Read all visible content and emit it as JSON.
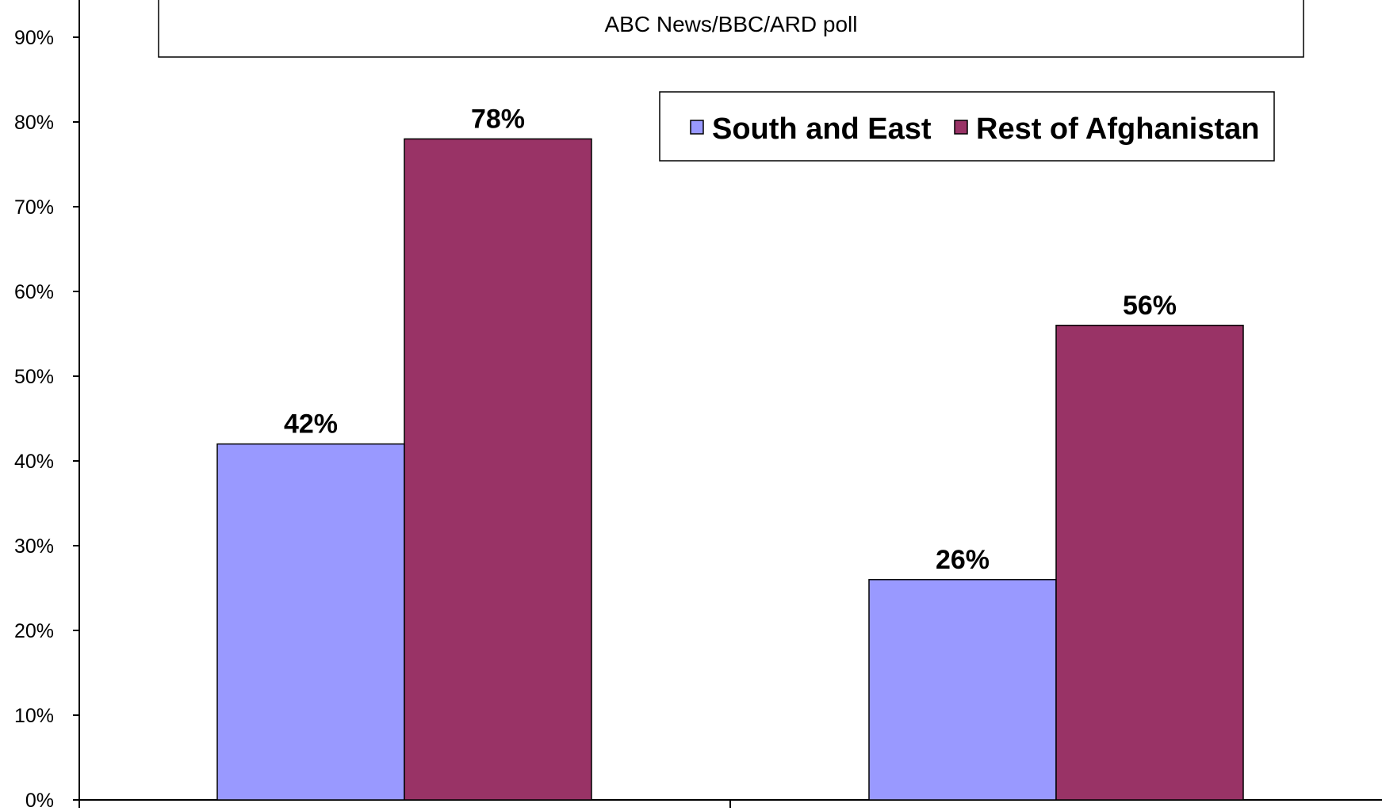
{
  "chart_data": {
    "type": "bar",
    "title": "",
    "subtitle": "ABC News/BBC/ARD poll",
    "categories": [
      "",
      ""
    ],
    "series": [
      {
        "name": "South and East",
        "values": [
          42,
          26
        ],
        "color": "#9999FF"
      },
      {
        "name": "Rest of Afghanistan",
        "values": [
          78,
          56
        ],
        "color": "#993366"
      }
    ],
    "data_labels": [
      [
        "42%",
        "26%"
      ],
      [
        "78%",
        "56%"
      ]
    ],
    "yticks": [
      0,
      10,
      20,
      30,
      40,
      50,
      60,
      70,
      80,
      90
    ],
    "ytick_labels": [
      "0%",
      "10%",
      "20%",
      "30%",
      "40%",
      "50%",
      "60%",
      "70%",
      "80%",
      "90%"
    ],
    "ylim": [
      0,
      94
    ],
    "xlabel": "",
    "ylabel": "",
    "grid": false,
    "legend_position": "top-right"
  }
}
